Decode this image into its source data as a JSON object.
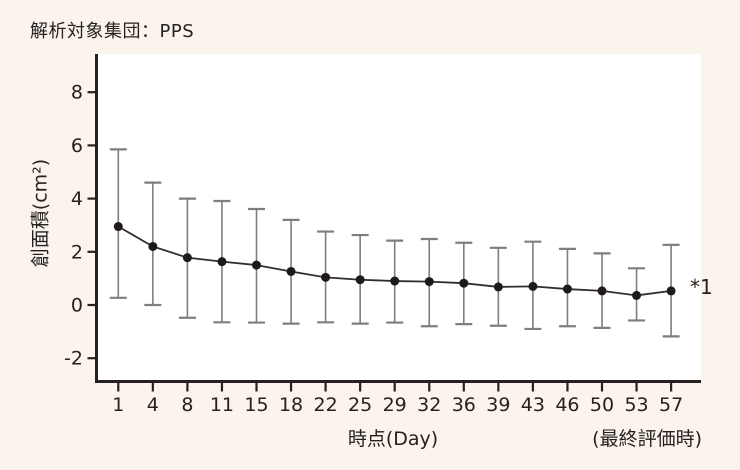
{
  "page": {
    "background": "#fbf4ec"
  },
  "header": {
    "title": "解析対象集団：PPS"
  },
  "chart_data": {
    "type": "line",
    "title": "解析対象集団：PPS",
    "xlabel": "時点(Day)",
    "x_axis_right_note": "(最終評価時)",
    "ylabel": "創面積(cm²)",
    "last_point_annotation": "*1",
    "x_tick_labels": [
      "1",
      "4",
      "8",
      "11",
      "15",
      "18",
      "22",
      "25",
      "29",
      "32",
      "36",
      "39",
      "43",
      "46",
      "50",
      "53",
      "57"
    ],
    "y_ticks": [
      8,
      6,
      4,
      2,
      0,
      -2
    ],
    "ylim": [
      -2.9,
      9.4
    ],
    "grid": false,
    "legend": "none",
    "values": [
      2.95,
      2.2,
      1.78,
      1.63,
      1.5,
      1.26,
      1.04,
      0.95,
      0.9,
      0.88,
      0.82,
      0.68,
      0.7,
      0.6,
      0.53,
      0.36,
      0.53
    ],
    "error_upper": [
      5.85,
      4.6,
      4.0,
      3.91,
      3.61,
      3.2,
      2.76,
      2.63,
      2.42,
      2.48,
      2.34,
      2.15,
      2.38,
      2.11,
      1.94,
      1.38,
      2.26
    ],
    "error_lower": [
      0.27,
      0.0,
      -0.48,
      -0.65,
      -0.66,
      -0.7,
      -0.65,
      -0.7,
      -0.66,
      -0.8,
      -0.72,
      -0.78,
      -0.9,
      -0.8,
      -0.86,
      -0.58,
      -1.18
    ],
    "colors": {
      "background": "#fbf4ec",
      "plot_background": "#ffffff",
      "axis": "#262121",
      "line": "#332d2b",
      "marker": "#1f1a1a",
      "error_bar": "#827c7c",
      "text": "#262121"
    }
  }
}
